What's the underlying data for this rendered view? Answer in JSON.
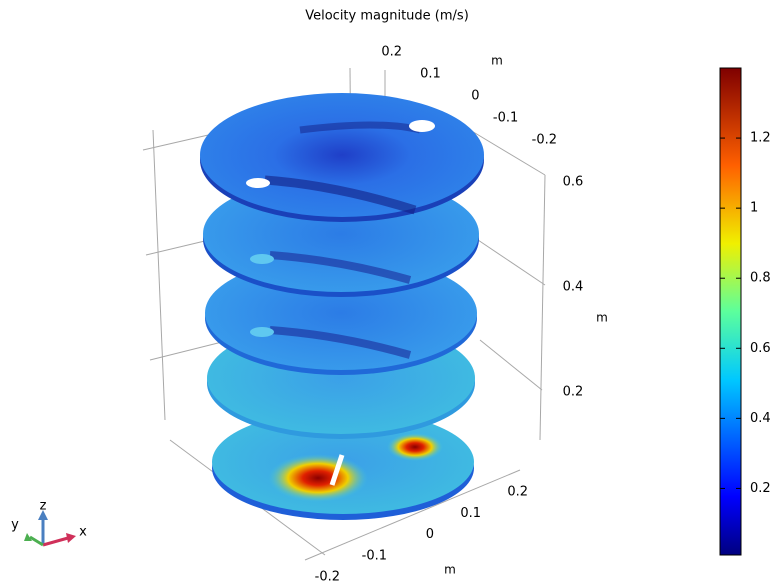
{
  "chart_data": {
    "type": "surface3d",
    "title": "Velocity magnitude (m/s)",
    "colorbar": {
      "lim": [
        0.01,
        1.4
      ],
      "ticks": [
        0.2,
        0.4,
        0.6,
        0.8,
        1,
        1.2
      ]
    },
    "axes": {
      "x": {
        "label": "m",
        "ticks": [
          -0.2,
          -0.1,
          0,
          0.1,
          0.2
        ]
      },
      "y": {
        "label": "m",
        "ticks": [
          0.2,
          0.1,
          0,
          -0.1,
          -0.2
        ]
      },
      "z": {
        "label": "m",
        "ticks": [
          0.2,
          0.4,
          0.6
        ]
      }
    },
    "triad": [
      "x",
      "y",
      "z"
    ]
  }
}
